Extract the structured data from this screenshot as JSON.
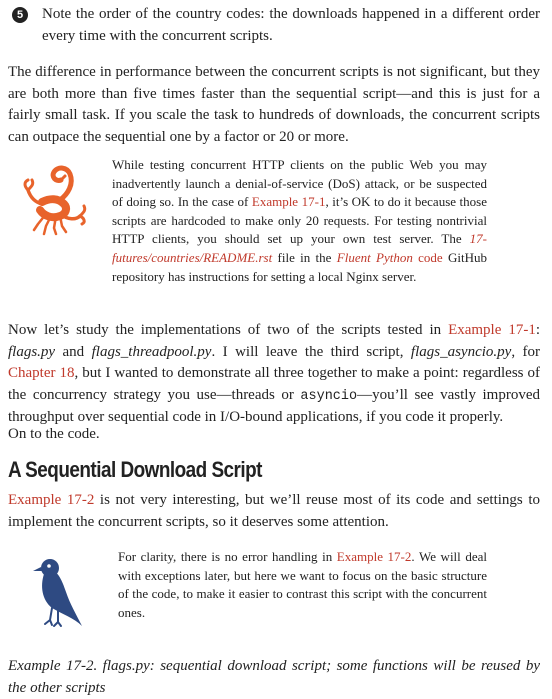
{
  "callout": {
    "number": "5",
    "text": "Note the order of the country codes: the downloads happened in a different order every time with the concurrent scripts."
  },
  "para1": "The difference in performance between the concurrent scripts is not significant, but they are both more than five times faster than the sequential script—and this is just for a fairly small task. If you scale the task to hundreds of downloads, the concurrent scripts can outpace the sequential one by a factor or 20 or more.",
  "warning": {
    "icon": "scorpion-icon",
    "color": "#e8632b",
    "t1": "While testing concurrent HTTP clients on the public Web you may inadvertently launch a denial-of-service (DoS) attack, or be suspected of doing so. In the case of ",
    "l1": "Example 17-1",
    "t2": ", it’s OK to do it because those scripts are hardcoded to make only 20 requests. For testing nontrivial HTTP clients, you should set up your own test server. The ",
    "l2": "17-futures/countries/README.rst",
    "t3": " file in the ",
    "l3": "Fluent Python",
    "l4": "code",
    "t4": " GitHub repository has instructions for setting a local Nginx server."
  },
  "para2": {
    "t1": "Now let’s study the implementations of two of the scripts tested in ",
    "l1": "Example 17-1",
    "t2": ": ",
    "i1": "flags.py",
    "t3": " and ",
    "i2": "flags_threadpool.py",
    "t4": ". I will leave the third script, ",
    "i3": "flags_asyncio.py",
    "t5": ", for ",
    "l2": "Chapter 18",
    "t6": ", but I wanted to demonstrate all three together to make a point: regardless of the concurrency strategy you use—threads or ",
    "code1": "asyncio",
    "t7": "—you’ll see vastly improved throughput over sequential code in I/O-bound applications, if you code it properly."
  },
  "para3": "On to the code.",
  "heading": "A Sequential Download Script",
  "para4": {
    "l1": "Example 17-2",
    "t1": " is not very interesting, but we’ll reuse most of its code and settings to implement the concurrent scripts, so it deserves some attention."
  },
  "note": {
    "icon": "bird-icon",
    "color": "#2e4a82",
    "t1": "For clarity, there is no error handling in ",
    "l1": "Example 17-2",
    "t2": ". We will deal with exceptions later, but here we want to focus on the basic structure of the code, to make it easier to contrast this script with the concurrent ones."
  },
  "caption": "Example 17-2. flags.py: sequential download script; some functions will be reused by the other scripts"
}
